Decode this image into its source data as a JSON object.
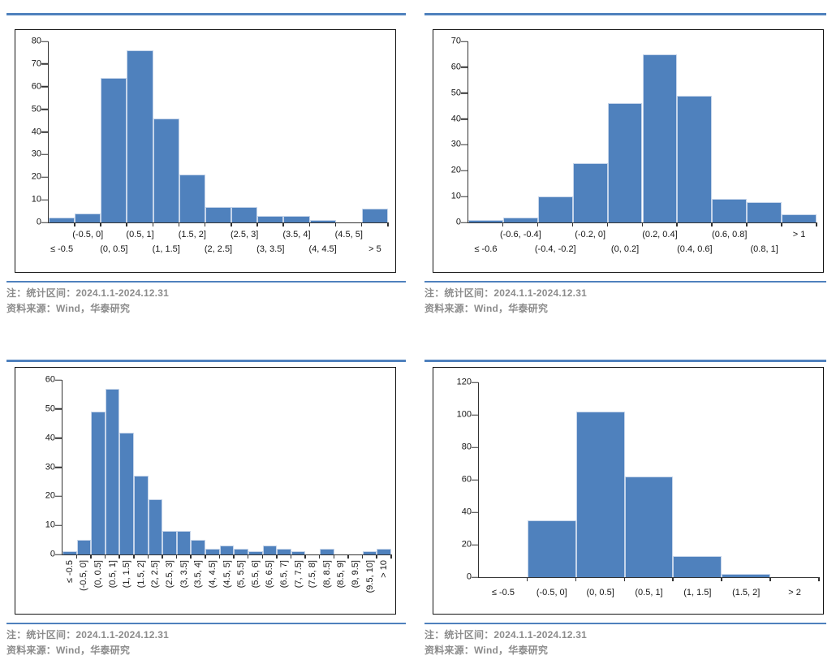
{
  "colors": {
    "bar_fill": "#4f81bd",
    "bar_edge": "#c6d5ea",
    "accent_rule": "#4f81bd",
    "axis": "#333333",
    "note_text": "#8c8c8c",
    "tick_label_text": "#161616"
  },
  "chart_data": [
    {
      "id": "top-left-histogram",
      "type": "bar",
      "title": "",
      "xlabel": "",
      "ylabel": "",
      "categories": [
        "≤ -0.5",
        "(-0.5, 0]",
        "(0, 0.5]",
        "(0.5, 1]",
        "(1, 1.5]",
        "(1.5, 2]",
        "(2, 2.5]",
        "(2.5, 3]",
        "(3, 3.5]",
        "(3.5, 4]",
        "(4, 4.5]",
        "(4.5, 5]",
        "> 5"
      ],
      "values": [
        2,
        4,
        64,
        76,
        46,
        21,
        7,
        7,
        3,
        3,
        1,
        0,
        6
      ],
      "ylim": [
        0,
        80
      ],
      "ystep": 10,
      "yticks": [
        0,
        10,
        20,
        30,
        40,
        50,
        60,
        70,
        80
      ],
      "grid": false,
      "legend": "none",
      "xlabel_mode": "staggered",
      "notes": [
        "注：统计区间：2024.1.1-2024.12.31",
        "资料来源：Wind，华泰研究"
      ]
    },
    {
      "id": "top-right-histogram",
      "type": "bar",
      "title": "",
      "xlabel": "",
      "ylabel": "",
      "categories": [
        "≤ -0.6",
        "(-0.6, -0.4]",
        "(-0.4, -0.2]",
        "(-0.2, 0]",
        "(0, 0.2]",
        "(0.2, 0.4]",
        "(0.4, 0.6]",
        "(0.6, 0.8]",
        "(0.8, 1]",
        "> 1"
      ],
      "values": [
        1,
        2,
        10,
        23,
        46,
        65,
        49,
        9,
        8,
        3
      ],
      "ylim": [
        0,
        70
      ],
      "ystep": 10,
      "yticks": [
        0,
        10,
        20,
        30,
        40,
        50,
        60,
        70
      ],
      "grid": false,
      "legend": "none",
      "xlabel_mode": "staggered",
      "notes": [
        "注：统计区间：2024.1.1-2024.12.31",
        "资料来源：Wind，华泰研究"
      ]
    },
    {
      "id": "bottom-left-histogram",
      "type": "bar",
      "title": "",
      "xlabel": "",
      "ylabel": "",
      "categories": [
        "≤ -0.5",
        "(-0.5, 0]",
        "(0, 0.5]",
        "(0.5, 1]",
        "(1, 1.5]",
        "(1.5, 2]",
        "(2, 2.5]",
        "(2.5, 3]",
        "(3, 3.5]",
        "(3.5, 4]",
        "(4, 4.5]",
        "(4.5, 5]",
        "(5, 5.5]",
        "(5.5, 6]",
        "(6, 6.5]",
        "(6.5, 7]",
        "(7, 7.5]",
        "(7.5, 8]",
        "(8, 8.5]",
        "(8.5, 9]",
        "(9, 9.5]",
        "(9.5, 10]",
        "> 10"
      ],
      "values": [
        1,
        5,
        49,
        57,
        42,
        27,
        19,
        8,
        8,
        5,
        2,
        3,
        2,
        1,
        3,
        2,
        1,
        0,
        2,
        0,
        0,
        1,
        2
      ],
      "ylim": [
        0,
        60
      ],
      "ystep": 10,
      "yticks": [
        0,
        10,
        20,
        30,
        40,
        50,
        60
      ],
      "grid": false,
      "legend": "none",
      "xlabel_mode": "rotated",
      "notes": [
        "注：统计区间：2024.1.1-2024.12.31",
        "资料来源：Wind，华泰研究"
      ]
    },
    {
      "id": "bottom-right-histogram",
      "type": "bar",
      "title": "",
      "xlabel": "",
      "ylabel": "",
      "categories": [
        "≤ -0.5",
        "(-0.5, 0]",
        "(0, 0.5]",
        "(0.5, 1]",
        "(1, 1.5]",
        "(1.5, 2]",
        "> 2"
      ],
      "values": [
        0,
        35,
        102,
        62,
        13,
        2,
        0
      ],
      "ylim": [
        0,
        120
      ],
      "ystep": 20,
      "yticks": [
        0,
        20,
        40,
        60,
        80,
        100,
        120
      ],
      "grid": false,
      "legend": "none",
      "xlabel_mode": "single",
      "notes": [
        "注：统计区间：2024.1.1-2024.12.31",
        "资料来源：Wind，华泰研究"
      ]
    }
  ]
}
